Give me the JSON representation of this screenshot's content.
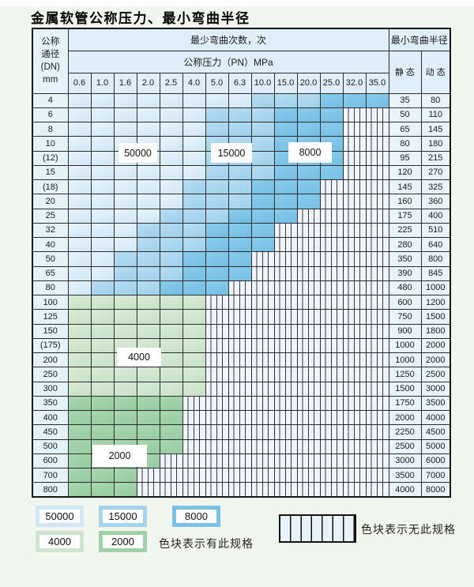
{
  "title": "金属软管公称压力、最小弯曲半径",
  "table": {
    "header": {
      "dn_lines": [
        "公称",
        "通径",
        "(DN)",
        "mm"
      ],
      "bend_cycles_label": "最少弯曲次数，次",
      "pressure_label": "公称压力（PN）MPa",
      "min_radius_label": "最小弯曲半径",
      "static_label": "静 态",
      "dynamic_label": "动 态",
      "pressures": [
        "0.6",
        "1.0",
        "1.6",
        "2.0",
        "2.5",
        "4.0",
        "5.0",
        "6.3",
        "10.0",
        "15.0",
        "20.0",
        "25.0",
        "32.0",
        "35.0"
      ]
    },
    "rows": [
      {
        "dn": "4",
        "colored": 14,
        "zone": "blue",
        "static": "35",
        "dynamic": "80"
      },
      {
        "dn": "6",
        "colored": 12,
        "zone": "blue",
        "static": "50",
        "dynamic": "110"
      },
      {
        "dn": "8",
        "colored": 12,
        "zone": "blue",
        "static": "65",
        "dynamic": "145"
      },
      {
        "dn": "10",
        "colored": 12,
        "zone": "blue",
        "static": "80",
        "dynamic": "180"
      },
      {
        "dn": "(12)",
        "colored": 12,
        "zone": "blue",
        "static": "95",
        "dynamic": "215"
      },
      {
        "dn": "15",
        "colored": 12,
        "zone": "blue",
        "static": "120",
        "dynamic": "270"
      },
      {
        "dn": "(18)",
        "colored": 11,
        "zone": "blue",
        "static": "145",
        "dynamic": "325"
      },
      {
        "dn": "20",
        "colored": 11,
        "zone": "blue",
        "static": "160",
        "dynamic": "360"
      },
      {
        "dn": "25",
        "colored": 10,
        "zone": "blue",
        "static": "175",
        "dynamic": "400"
      },
      {
        "dn": "32",
        "colored": 9,
        "zone": "blue",
        "static": "225",
        "dynamic": "510"
      },
      {
        "dn": "40",
        "colored": 9,
        "zone": "blue",
        "static": "280",
        "dynamic": "640"
      },
      {
        "dn": "50",
        "colored": 8,
        "zone": "blue",
        "static": "350",
        "dynamic": "800"
      },
      {
        "dn": "65",
        "colored": 8,
        "zone": "blue",
        "static": "390",
        "dynamic": "845"
      },
      {
        "dn": "80",
        "colored": 7,
        "zone": "blue",
        "static": "480",
        "dynamic": "1000"
      },
      {
        "dn": "100",
        "colored": 6,
        "zone": "g1",
        "static": "600",
        "dynamic": "1200"
      },
      {
        "dn": "125",
        "colored": 6,
        "zone": "g1",
        "static": "750",
        "dynamic": "1500"
      },
      {
        "dn": "150",
        "colored": 6,
        "zone": "g1",
        "static": "900",
        "dynamic": "1800"
      },
      {
        "dn": "(175)",
        "colored": 6,
        "zone": "g1",
        "static": "1000",
        "dynamic": "2000"
      },
      {
        "dn": "200",
        "colored": 6,
        "zone": "g1",
        "static": "1000",
        "dynamic": "2000"
      },
      {
        "dn": "250",
        "colored": 6,
        "zone": "g1",
        "static": "1250",
        "dynamic": "2500"
      },
      {
        "dn": "300",
        "colored": 6,
        "zone": "g1",
        "static": "1500",
        "dynamic": "3000"
      },
      {
        "dn": "350",
        "colored": 5,
        "zone": "g2",
        "static": "1750",
        "dynamic": "3500"
      },
      {
        "dn": "400",
        "colored": 5,
        "zone": "g2",
        "static": "2000",
        "dynamic": "4000"
      },
      {
        "dn": "450",
        "colored": 5,
        "zone": "g2",
        "static": "2250",
        "dynamic": "4500"
      },
      {
        "dn": "500",
        "colored": 5,
        "zone": "g2",
        "static": "2500",
        "dynamic": "5000"
      },
      {
        "dn": "600",
        "colored": 4,
        "zone": "g2",
        "static": "3000",
        "dynamic": "6000"
      },
      {
        "dn": "700",
        "colored": 3,
        "zone": "g2",
        "static": "3500",
        "dynamic": "7000"
      },
      {
        "dn": "800",
        "colored": 3,
        "zone": "g2",
        "static": "4000",
        "dynamic": "8000"
      }
    ]
  },
  "overlays": [
    {
      "id": "50000",
      "label": "50000"
    },
    {
      "id": "15000",
      "label": "15000"
    },
    {
      "id": "8000",
      "label": "8000"
    },
    {
      "id": "4000",
      "label": "4000"
    },
    {
      "id": "2000",
      "label": "2000"
    }
  ],
  "legend": {
    "items": [
      {
        "label": "50000",
        "color": "#cfe7f6"
      },
      {
        "label": "15000",
        "color": "#a6d4ef"
      },
      {
        "label": "8000",
        "color": "#79c1e6"
      },
      {
        "label": "4000",
        "color": "#cde4cd"
      },
      {
        "label": "2000",
        "color": "#9ed1a6"
      }
    ],
    "has_spec_text": "色块表示有此规格",
    "no_spec_text": "色块表示无此规格"
  },
  "colors": {
    "cycles_50000": "#cfe7f6",
    "cycles_15000": "#a6d4ef",
    "cycles_8000": "#79c1e6",
    "cycles_4000": "#cde4cd",
    "cycles_2000": "#9ed1a6",
    "no_spec_fill": "#eff5fb",
    "grid_line": "#2c2c2c"
  }
}
